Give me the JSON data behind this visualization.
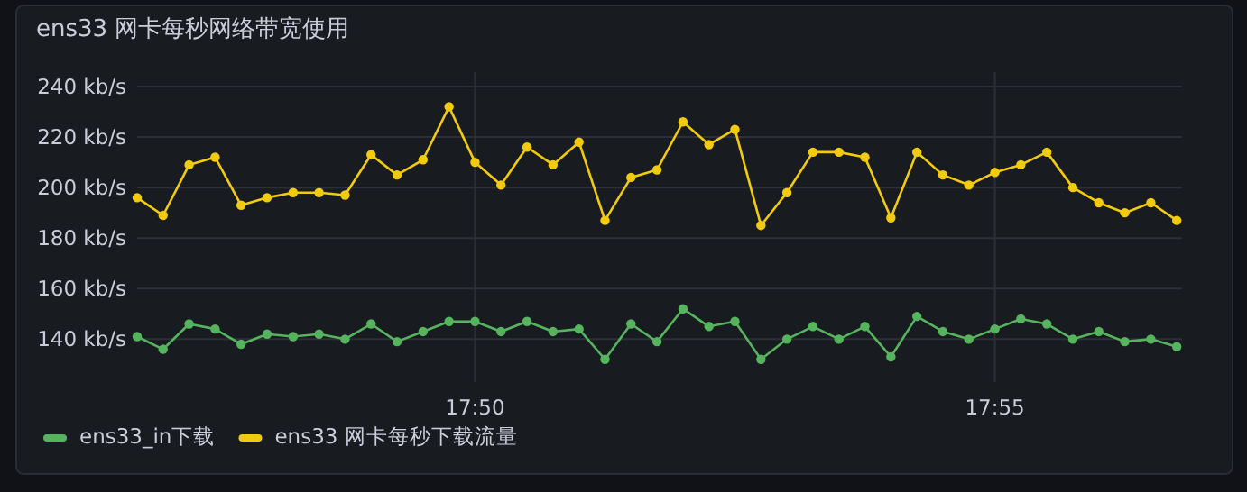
{
  "chart_data": {
    "type": "line",
    "title": "ens33 网卡每秒网络带宽使用",
    "x": [
      17.77917,
      17.78333,
      17.7875,
      17.79167,
      17.79583,
      17.8,
      17.80417,
      17.80833,
      17.8125,
      17.81667,
      17.82083,
      17.825,
      17.82917,
      17.83333,
      17.8375,
      17.84167,
      17.84583,
      17.85,
      17.85417,
      17.85833,
      17.8625,
      17.86667,
      17.87083,
      17.875,
      17.87917,
      17.88333,
      17.8875,
      17.89167,
      17.89583,
      17.9,
      17.90417,
      17.90833,
      17.9125,
      17.91667,
      17.92083,
      17.925,
      17.92917,
      17.93333,
      17.9375,
      17.94167,
      17.94583
    ],
    "series": [
      {
        "name": "ens33_in下载",
        "color": "#56b35e",
        "values": [
          141,
          136,
          146,
          144,
          138,
          142,
          141,
          142,
          140,
          146,
          139,
          143,
          147,
          147,
          143,
          147,
          143,
          144,
          132,
          146,
          139,
          152,
          145,
          147,
          132,
          140,
          145,
          140,
          145,
          133,
          149,
          143,
          140,
          144,
          148,
          146,
          140,
          143,
          139,
          140,
          137
        ]
      },
      {
        "name": "ens33 网卡每秒下载流量",
        "color": "#f2cc0c",
        "values": [
          196,
          189,
          209,
          212,
          193,
          196,
          198,
          198,
          197,
          213,
          205,
          211,
          232,
          210,
          201,
          216,
          209,
          218,
          187,
          204,
          207,
          226,
          217,
          223,
          185,
          198,
          214,
          214,
          212,
          188,
          214,
          205,
          201,
          206,
          209,
          214,
          200,
          194,
          190,
          194,
          187
        ]
      }
    ],
    "xlim": [
      17.77917,
      17.94667
    ],
    "xticks": [
      {
        "value": 17.83333,
        "label": "17:50"
      },
      {
        "value": 17.91667,
        "label": "17:55"
      }
    ],
    "ylim": [
      123,
      240
    ],
    "yticks": [
      {
        "value": 140,
        "label": "140 kb/s"
      },
      {
        "value": 160,
        "label": "160 kb/s"
      },
      {
        "value": 180,
        "label": "180 kb/s"
      },
      {
        "value": 200,
        "label": "200 kb/s"
      },
      {
        "value": 220,
        "label": "220 kb/s"
      },
      {
        "value": 240,
        "label": "240 kb/s"
      }
    ],
    "grid": true,
    "legend": "bottom",
    "marker": "circle",
    "line_style": "solid"
  }
}
